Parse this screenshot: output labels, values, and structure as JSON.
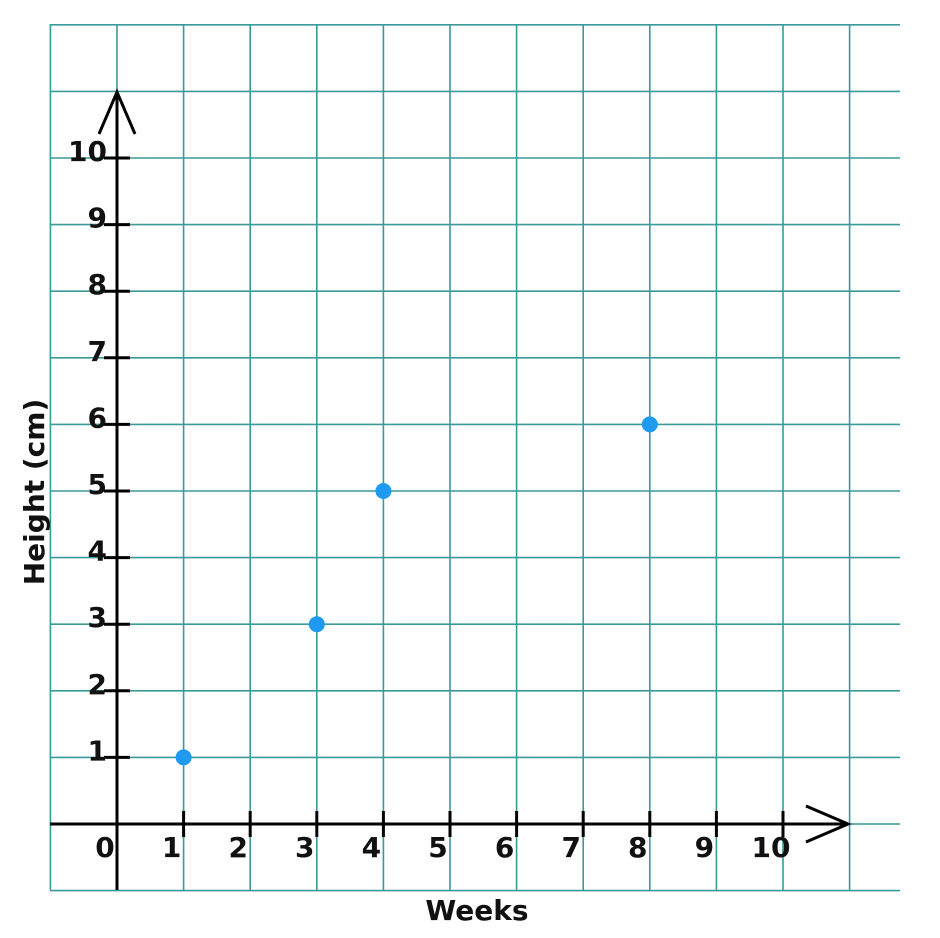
{
  "chart_data": {
    "type": "scatter",
    "xlabel": "Weeks",
    "ylabel": "Height (cm)",
    "xlim": [
      -1,
      11
    ],
    "ylim": [
      -1,
      12
    ],
    "x_ticks": [
      "0",
      "1",
      "2",
      "3",
      "4",
      "5",
      "6",
      "7",
      "8",
      "9",
      "10"
    ],
    "y_ticks": [
      "1",
      "2",
      "3",
      "4",
      "5",
      "6",
      "7",
      "8",
      "9",
      "10"
    ],
    "points": [
      {
        "x": 1,
        "y": 1
      },
      {
        "x": 3,
        "y": 3
      },
      {
        "x": 4,
        "y": 5
      },
      {
        "x": 8,
        "y": 6
      }
    ],
    "grid": true,
    "colors": {
      "grid": "#3a9a9a",
      "axis": "#000000",
      "point": "#1e9bf0"
    }
  }
}
